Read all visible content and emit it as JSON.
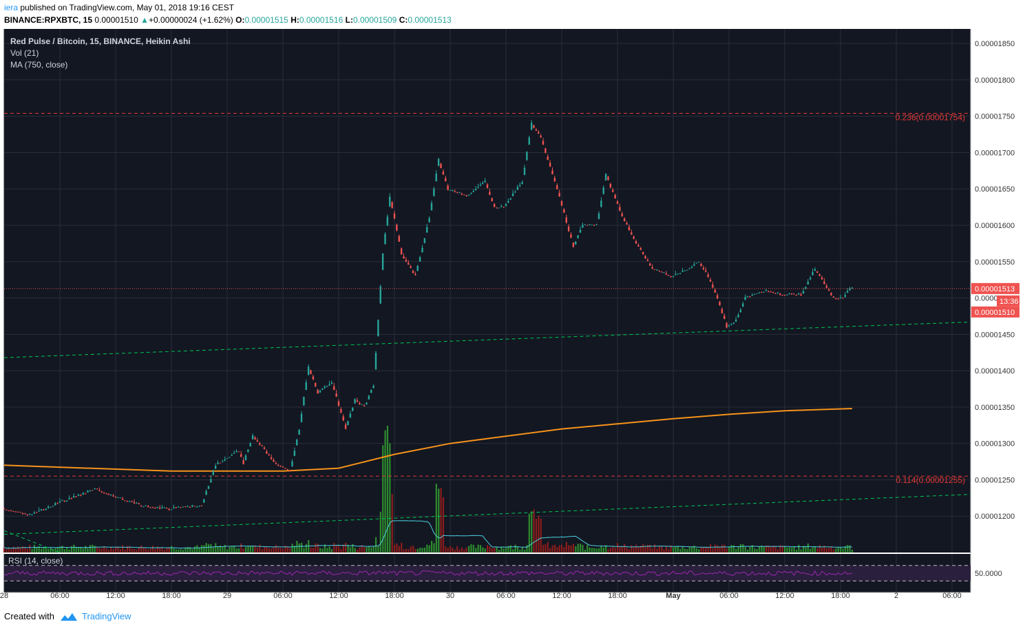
{
  "header": {
    "author": "iera",
    "published_text": "published on TradingView.com, May 01, 2018 19:16 CEST",
    "symbol": "BINANCE:RPXBTC, 15",
    "last": "0.00001510",
    "change_arrow": "▲",
    "change": "+0.00000024 (+1.62%)",
    "o_label": "O:",
    "o": "0.00001515",
    "h_label": "H:",
    "h": "0.00001516",
    "l_label": "L:",
    "l": "0.00001509",
    "c_label": "C:",
    "c": "0.00001513"
  },
  "legend": {
    "title": "Red Pulse / Bitcoin, 15, BINANCE, Heikin Ashi",
    "vol": "Vol (21)",
    "ma": "MA (750, close)",
    "rsi": "RSI (14, close)"
  },
  "footer": {
    "created_with": "Created with",
    "brand": "TradingView"
  },
  "colors": {
    "background": "#131722",
    "grid": "#2a2e39",
    "up": "#26a69a",
    "down": "#ef5350",
    "ma": "#f7931a",
    "trendline": "#00c853",
    "fib": "#e53935",
    "rsi": "#9c27b0",
    "vol_ma": "#4dd0e1",
    "vol_up": "#2e8b2e",
    "vol_down": "#8b1c1c"
  },
  "chart_data": {
    "type": "candlestick",
    "title": "Red Pulse / Bitcoin, 15, BINANCE, Heikin Ashi",
    "y_axis": {
      "ticks": [
        "0.00001850",
        "0.00001800",
        "0.00001750",
        "0.00001700",
        "0.00001650",
        "0.00001600",
        "0.00001550",
        "0.00001500",
        "0.00001450",
        "0.00001400",
        "0.00001350",
        "0.00001300",
        "0.00001250",
        "0.00001200"
      ],
      "range": [
        1.15e-05,
        1.87e-05
      ]
    },
    "x_axis": {
      "ticks": [
        "28",
        "06:00",
        "12:00",
        "18:00",
        "29",
        "06:00",
        "12:00",
        "18:00",
        "30",
        "06:00",
        "12:00",
        "18:00",
        "May",
        "06:00",
        "12:00",
        "18:00",
        "2",
        "06:00"
      ],
      "range_hours": [
        "2018-04-28 00:00",
        "2018-05-02 08:00"
      ]
    },
    "price_path": [
      {
        "t": "2018-04-28 00:00",
        "p": 1.21e-05
      },
      {
        "t": "2018-04-28 03:00",
        "p": 1.202e-05
      },
      {
        "t": "2018-04-28 06:00",
        "p": 1.218e-05
      },
      {
        "t": "2018-04-28 10:00",
        "p": 1.237e-05
      },
      {
        "t": "2018-04-28 12:00",
        "p": 1.228e-05
      },
      {
        "t": "2018-04-28 15:00",
        "p": 1.215e-05
      },
      {
        "t": "2018-04-28 18:00",
        "p": 1.21e-05
      },
      {
        "t": "2018-04-28 21:30",
        "p": 1.215e-05
      },
      {
        "t": "2018-04-28 23:00",
        "p": 1.27e-05
      },
      {
        "t": "2018-04-29 01:30",
        "p": 1.29e-05
      },
      {
        "t": "2018-04-29 02:00",
        "p": 1.273e-05
      },
      {
        "t": "2018-04-29 03:00",
        "p": 1.31e-05
      },
      {
        "t": "2018-04-29 05:30",
        "p": 1.272e-05
      },
      {
        "t": "2018-04-29 07:00",
        "p": 1.262e-05
      },
      {
        "t": "2018-04-29 08:00",
        "p": 1.32e-05
      },
      {
        "t": "2018-04-29 09:00",
        "p": 1.405e-05
      },
      {
        "t": "2018-04-29 10:00",
        "p": 1.37e-05
      },
      {
        "t": "2018-04-29 11:30",
        "p": 1.385e-05
      },
      {
        "t": "2018-04-29 13:00",
        "p": 1.32e-05
      },
      {
        "t": "2018-04-29 14:00",
        "p": 1.36e-05
      },
      {
        "t": "2018-04-29 15:00",
        "p": 1.35e-05
      },
      {
        "t": "2018-04-29 16:00",
        "p": 1.38e-05
      },
      {
        "t": "2018-04-29 17:00",
        "p": 1.56e-05
      },
      {
        "t": "2018-04-29 17:45",
        "p": 1.64e-05
      },
      {
        "t": "2018-04-29 19:00",
        "p": 1.56e-05
      },
      {
        "t": "2018-04-29 20:30",
        "p": 1.53e-05
      },
      {
        "t": "2018-04-29 22:00",
        "p": 1.61e-05
      },
      {
        "t": "2018-04-29 23:00",
        "p": 1.69e-05
      },
      {
        "t": "2018-04-30 00:00",
        "p": 1.65e-05
      },
      {
        "t": "2018-04-30 02:00",
        "p": 1.64e-05
      },
      {
        "t": "2018-04-30 04:00",
        "p": 1.66e-05
      },
      {
        "t": "2018-04-30 05:00",
        "p": 1.625e-05
      },
      {
        "t": "2018-04-30 06:00",
        "p": 1.625e-05
      },
      {
        "t": "2018-04-30 08:00",
        "p": 1.66e-05
      },
      {
        "t": "2018-04-30 09:00",
        "p": 1.74e-05
      },
      {
        "t": "2018-04-30 10:00",
        "p": 1.72e-05
      },
      {
        "t": "2018-04-30 11:00",
        "p": 1.68e-05
      },
      {
        "t": "2018-04-30 12:00",
        "p": 1.64e-05
      },
      {
        "t": "2018-04-30 13:30",
        "p": 1.57e-05
      },
      {
        "t": "2018-04-30 14:30",
        "p": 1.6e-05
      },
      {
        "t": "2018-04-30 16:00",
        "p": 1.6e-05
      },
      {
        "t": "2018-04-30 17:00",
        "p": 1.67e-05
      },
      {
        "t": "2018-04-30 18:30",
        "p": 1.62e-05
      },
      {
        "t": "2018-04-30 20:00",
        "p": 1.58e-05
      },
      {
        "t": "2018-04-30 22:00",
        "p": 1.54e-05
      },
      {
        "t": "2018-05-01 00:00",
        "p": 1.53e-05
      },
      {
        "t": "2018-05-01 02:00",
        "p": 1.54e-05
      },
      {
        "t": "2018-05-01 03:00",
        "p": 1.55e-05
      },
      {
        "t": "2018-05-01 04:00",
        "p": 1.53e-05
      },
      {
        "t": "2018-05-01 05:00",
        "p": 1.5e-05
      },
      {
        "t": "2018-05-01 06:00",
        "p": 1.46e-05
      },
      {
        "t": "2018-05-01 07:00",
        "p": 1.47e-05
      },
      {
        "t": "2018-05-01 08:00",
        "p": 1.5e-05
      },
      {
        "t": "2018-05-01 10:00",
        "p": 1.51e-05
      },
      {
        "t": "2018-05-01 12:00",
        "p": 1.505e-05
      },
      {
        "t": "2018-05-01 14:00",
        "p": 1.505e-05
      },
      {
        "t": "2018-05-01 15:30",
        "p": 1.54e-05
      },
      {
        "t": "2018-05-01 16:30",
        "p": 1.52e-05
      },
      {
        "t": "2018-05-01 17:30",
        "p": 1.5e-05
      },
      {
        "t": "2018-05-01 18:30",
        "p": 1.5e-05
      },
      {
        "t": "2018-05-01 19:15",
        "p": 1.513e-05
      }
    ],
    "ma_750": [
      {
        "t": "2018-04-28 00:00",
        "v": 1.27e-05
      },
      {
        "t": "2018-04-28 18:00",
        "v": 1.262e-05
      },
      {
        "t": "2018-04-29 06:00",
        "v": 1.262e-05
      },
      {
        "t": "2018-04-29 12:00",
        "v": 1.266e-05
      },
      {
        "t": "2018-04-29 18:00",
        "v": 1.285e-05
      },
      {
        "t": "2018-04-30 00:00",
        "v": 1.3e-05
      },
      {
        "t": "2018-04-30 06:00",
        "v": 1.31e-05
      },
      {
        "t": "2018-04-30 12:00",
        "v": 1.32e-05
      },
      {
        "t": "2018-04-30 18:00",
        "v": 1.327e-05
      },
      {
        "t": "2018-05-01 00:00",
        "v": 1.334e-05
      },
      {
        "t": "2018-05-01 06:00",
        "v": 1.34e-05
      },
      {
        "t": "2018-05-01 12:00",
        "v": 1.345e-05
      },
      {
        "t": "2018-05-01 19:15",
        "v": 1.348e-05
      }
    ],
    "fib_levels": [
      {
        "label": "0.236(0.00001754)",
        "value": 1.754e-05
      },
      {
        "label": "0.114(0.00001255)",
        "value": 1.255e-05
      }
    ],
    "trendlines": [
      {
        "from": {
          "t": "2018-04-28 00:00",
          "p": 1.418e-05
        },
        "to": {
          "t": "2018-05-02 08:00",
          "p": 1.467e-05
        }
      },
      {
        "from": {
          "t": "2018-04-28 00:00",
          "p": 1.175e-05
        },
        "to": {
          "t": "2018-05-02 08:00",
          "p": 1.23e-05
        }
      },
      {
        "from": {
          "t": "2018-04-28 00:00",
          "p": 1.18e-05
        },
        "to": {
          "t": "2018-04-28 06:00",
          "p": 1.15e-05
        }
      }
    ],
    "volume_spikes": [
      {
        "t": "2018-04-29 17:00",
        "v": 1.0
      },
      {
        "t": "2018-04-29 17:15",
        "v": 0.85
      },
      {
        "t": "2018-04-29 17:30",
        "v": 0.55
      },
      {
        "t": "2018-04-29 16:45",
        "v": 0.35
      },
      {
        "t": "2018-04-29 22:45",
        "v": 0.55
      },
      {
        "t": "2018-04-29 23:00",
        "v": 0.45
      },
      {
        "t": "2018-04-30 08:45",
        "v": 0.35
      },
      {
        "t": "2018-04-30 09:30",
        "v": 0.3
      }
    ],
    "rsi": {
      "name": "RSI (14, close)",
      "last": "50.0000",
      "upper": 70,
      "lower": 30
    },
    "last_price": {
      "value": "0.00001513",
      "secondary": "0.00001510",
      "countdown": "13:36"
    }
  }
}
